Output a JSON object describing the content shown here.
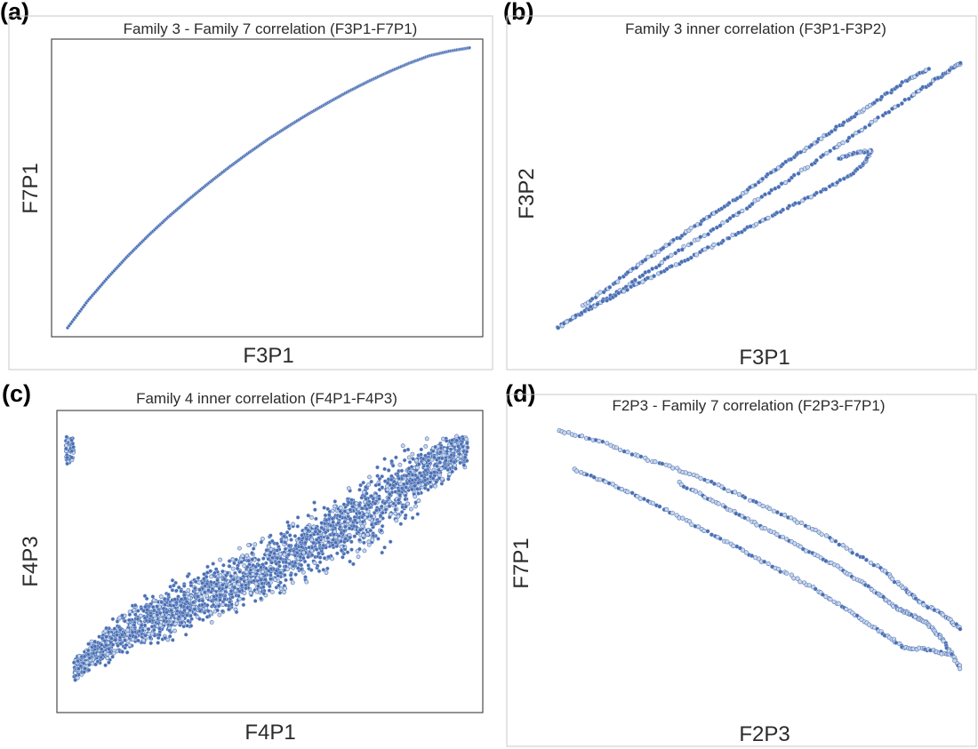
{
  "colors": {
    "marker_fill": "#4a6fb5",
    "marker_edge": "#c9d6ea",
    "frame": "#4a4a4a"
  },
  "chart_data": [
    {
      "panel": "(a)",
      "type": "scatter",
      "title": "Family 3 - Family 7 correlation (F3P1-F7P1)",
      "xlabel": "F3P1",
      "ylabel": "F7P1",
      "xlim": [
        0,
        1
      ],
      "ylim": [
        0,
        1
      ],
      "grid": false,
      "series": [
        {
          "x": [
            0.0,
            0.05,
            0.1,
            0.15,
            0.2,
            0.25,
            0.3,
            0.35,
            0.4,
            0.45,
            0.5,
            0.55,
            0.6,
            0.65,
            0.7,
            0.75,
            0.8,
            0.85,
            0.9,
            0.95,
            1.0
          ],
          "y": [
            0.0,
            0.098,
            0.183,
            0.262,
            0.335,
            0.403,
            0.466,
            0.526,
            0.583,
            0.637,
            0.688,
            0.735,
            0.78,
            0.822,
            0.862,
            0.899,
            0.933,
            0.964,
            0.991,
            1.008,
            1.02
          ]
        }
      ]
    },
    {
      "panel": "(b)",
      "type": "scatter",
      "title": "Family 3 inner correlation (F3P1-F3P2)",
      "xlabel": "F3P1",
      "ylabel": "F3P2",
      "xlim": [
        0,
        1
      ],
      "ylim": [
        0,
        1
      ],
      "grid": false,
      "series": [
        {
          "x": [
            0.0,
            0.08,
            0.16,
            0.24,
            0.32,
            0.4,
            0.48,
            0.56,
            0.64,
            0.72,
            0.8,
            0.88,
            0.94,
            0.98,
            1.0
          ],
          "y": [
            0.0,
            0.07,
            0.14,
            0.22,
            0.3,
            0.37,
            0.45,
            0.53,
            0.61,
            0.69,
            0.77,
            0.85,
            0.91,
            0.95,
            0.97
          ]
        },
        {
          "x": [
            0.0,
            0.08,
            0.16,
            0.24,
            0.32,
            0.4,
            0.48,
            0.56,
            0.64,
            0.72,
            0.76,
            0.78,
            0.74,
            0.7
          ],
          "y": [
            0.0,
            0.07,
            0.13,
            0.19,
            0.25,
            0.31,
            0.37,
            0.43,
            0.49,
            0.55,
            0.6,
            0.65,
            0.64,
            0.62
          ]
        },
        {
          "x": [
            0.06,
            0.14,
            0.22,
            0.3,
            0.38,
            0.46,
            0.54,
            0.62,
            0.7,
            0.78,
            0.86,
            0.92
          ],
          "y": [
            0.08,
            0.16,
            0.25,
            0.33,
            0.41,
            0.49,
            0.58,
            0.66,
            0.74,
            0.82,
            0.9,
            0.95
          ]
        }
      ]
    },
    {
      "panel": "(c)",
      "type": "scatter",
      "title": "Family 4 inner correlation (F4P1-F4P3)",
      "xlabel": "F4P1",
      "ylabel": "F4P3",
      "xlim": [
        0,
        1
      ],
      "ylim": [
        0,
        1
      ],
      "grid": false,
      "series": [
        {
          "center_x": [
            0.02,
            0.1,
            0.2,
            0.3,
            0.4,
            0.5,
            0.6,
            0.7,
            0.8,
            0.9,
            0.98
          ],
          "center_y": [
            0.12,
            0.22,
            0.3,
            0.36,
            0.43,
            0.5,
            0.58,
            0.66,
            0.75,
            0.86,
            0.93
          ],
          "spread_y": [
            0.05,
            0.09,
            0.12,
            0.13,
            0.14,
            0.15,
            0.16,
            0.18,
            0.2,
            0.14,
            0.08
          ]
        }
      ]
    },
    {
      "panel": "(d)",
      "type": "scatter",
      "title": "F2P3 - Family 7 correlation (F2P3-F7P1)",
      "xlabel": "F2P3",
      "ylabel": "F7P1",
      "xlim": [
        0,
        1
      ],
      "ylim": [
        0,
        1
      ],
      "grid": false,
      "series": [
        {
          "x": [
            0.0,
            0.1,
            0.2,
            0.3,
            0.4,
            0.5,
            0.6,
            0.7,
            0.8,
            0.86,
            0.9,
            0.96,
            1.0
          ],
          "y": [
            1.0,
            0.96,
            0.9,
            0.85,
            0.79,
            0.72,
            0.65,
            0.57,
            0.48,
            0.4,
            0.35,
            0.3,
            0.25
          ]
        },
        {
          "x": [
            0.04,
            0.14,
            0.24,
            0.34,
            0.44,
            0.54,
            0.64,
            0.72,
            0.8,
            0.86,
            0.92,
            0.98
          ],
          "y": [
            0.85,
            0.79,
            0.72,
            0.64,
            0.56,
            0.48,
            0.4,
            0.32,
            0.24,
            0.18,
            0.17,
            0.15
          ]
        },
        {
          "x": [
            0.3,
            0.4,
            0.5,
            0.6,
            0.7,
            0.78,
            0.84,
            0.88,
            0.92,
            0.96,
            1.0
          ],
          "y": [
            0.8,
            0.72,
            0.64,
            0.56,
            0.48,
            0.4,
            0.33,
            0.3,
            0.27,
            0.2,
            0.1
          ]
        }
      ]
    }
  ]
}
